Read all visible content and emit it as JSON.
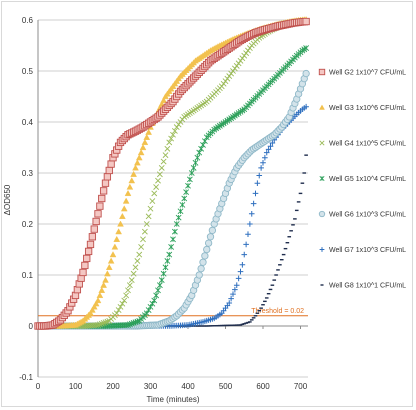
{
  "chart_data": {
    "type": "scatter",
    "title": "",
    "xlabel": "Time (minutes)",
    "ylabel": "ΔOD650",
    "xlim": [
      0,
      720
    ],
    "ylim": [
      -0.1,
      0.6
    ],
    "xticks": [
      0,
      100,
      200,
      300,
      400,
      500,
      600,
      700
    ],
    "yticks": [
      -0.1,
      0,
      0.1,
      0.2,
      0.3,
      0.4,
      0.5,
      0.6
    ],
    "ytick_labels": [
      "-0.1",
      "0",
      "0.1",
      "0.2",
      "0.3",
      "0.4",
      "0.5",
      "0.6"
    ],
    "grid": "horizontal",
    "legend_position": "right",
    "threshold": {
      "label": "Threshold = 0.02",
      "value": 0.02,
      "color": "#e07020"
    },
    "series": [
      {
        "name": "Well G2 1x10^7 CFU/mL",
        "color": "#c0504d",
        "marker": "square-open",
        "points": [
          [
            0,
            0
          ],
          [
            20,
            0
          ],
          [
            40,
            0.002
          ],
          [
            60,
            0.012
          ],
          [
            80,
            0.03
          ],
          [
            100,
            0.06
          ],
          [
            120,
            0.105
          ],
          [
            140,
            0.16
          ],
          [
            160,
            0.22
          ],
          [
            180,
            0.28
          ],
          [
            200,
            0.33
          ],
          [
            220,
            0.36
          ],
          [
            240,
            0.375
          ],
          [
            260,
            0.382
          ],
          [
            280,
            0.39
          ],
          [
            300,
            0.4
          ],
          [
            320,
            0.41
          ],
          [
            340,
            0.425
          ],
          [
            360,
            0.44
          ],
          [
            380,
            0.46
          ],
          [
            400,
            0.475
          ],
          [
            420,
            0.49
          ],
          [
            440,
            0.505
          ],
          [
            460,
            0.52
          ],
          [
            480,
            0.53
          ],
          [
            500,
            0.54
          ],
          [
            520,
            0.55
          ],
          [
            540,
            0.56
          ],
          [
            560,
            0.568
          ],
          [
            580,
            0.575
          ],
          [
            600,
            0.58
          ],
          [
            620,
            0.584
          ],
          [
            640,
            0.588
          ],
          [
            660,
            0.591
          ],
          [
            680,
            0.594
          ],
          [
            700,
            0.596
          ],
          [
            715,
            0.597
          ]
        ]
      },
      {
        "name": "Well G3 1x10^6 CFU/mL",
        "color": "#f2c14e",
        "marker": "triangle",
        "points": [
          [
            0,
            0
          ],
          [
            60,
            0
          ],
          [
            100,
            0.002
          ],
          [
            120,
            0.01
          ],
          [
            140,
            0.025
          ],
          [
            160,
            0.05
          ],
          [
            180,
            0.09
          ],
          [
            200,
            0.14
          ],
          [
            220,
            0.2
          ],
          [
            240,
            0.26
          ],
          [
            260,
            0.31
          ],
          [
            280,
            0.35
          ],
          [
            300,
            0.39
          ],
          [
            320,
            0.42
          ],
          [
            340,
            0.45
          ],
          [
            360,
            0.47
          ],
          [
            380,
            0.49
          ],
          [
            400,
            0.505
          ],
          [
            420,
            0.52
          ],
          [
            440,
            0.53
          ],
          [
            460,
            0.54
          ],
          [
            480,
            0.548
          ],
          [
            500,
            0.555
          ],
          [
            520,
            0.562
          ],
          [
            540,
            0.568
          ],
          [
            560,
            0.574
          ],
          [
            580,
            0.579
          ],
          [
            600,
            0.584
          ],
          [
            620,
            0.588
          ],
          [
            640,
            0.592
          ],
          [
            660,
            0.595
          ],
          [
            680,
            0.598
          ],
          [
            700,
            0.6
          ],
          [
            715,
            0.601
          ]
        ]
      },
      {
        "name": "Well G4 1x10^5 CFU/mL",
        "color": "#9bbb59",
        "marker": "x",
        "points": [
          [
            0,
            0
          ],
          [
            120,
            0
          ],
          [
            160,
            0.002
          ],
          [
            190,
            0.01
          ],
          [
            210,
            0.025
          ],
          [
            230,
            0.05
          ],
          [
            250,
            0.09
          ],
          [
            270,
            0.14
          ],
          [
            290,
            0.2
          ],
          [
            310,
            0.26
          ],
          [
            330,
            0.31
          ],
          [
            350,
            0.36
          ],
          [
            370,
            0.39
          ],
          [
            390,
            0.41
          ],
          [
            410,
            0.42
          ],
          [
            430,
            0.43
          ],
          [
            450,
            0.44
          ],
          [
            470,
            0.455
          ],
          [
            490,
            0.47
          ],
          [
            510,
            0.49
          ],
          [
            530,
            0.51
          ],
          [
            550,
            0.53
          ],
          [
            570,
            0.55
          ],
          [
            590,
            0.565
          ],
          [
            610,
            0.575
          ],
          [
            630,
            0.583
          ],
          [
            650,
            0.589
          ],
          [
            670,
            0.593
          ],
          [
            690,
            0.596
          ],
          [
            710,
            0.598
          ]
        ]
      },
      {
        "name": "Well G5 1x10^4 CFU/mL",
        "color": "#2ca05a",
        "marker": "star",
        "points": [
          [
            0,
            0
          ],
          [
            180,
            0
          ],
          [
            240,
            0.002
          ],
          [
            270,
            0.01
          ],
          [
            290,
            0.025
          ],
          [
            310,
            0.05
          ],
          [
            330,
            0.09
          ],
          [
            350,
            0.14
          ],
          [
            370,
            0.2
          ],
          [
            390,
            0.25
          ],
          [
            410,
            0.3
          ],
          [
            430,
            0.34
          ],
          [
            450,
            0.37
          ],
          [
            470,
            0.385
          ],
          [
            490,
            0.395
          ],
          [
            510,
            0.405
          ],
          [
            530,
            0.415
          ],
          [
            550,
            0.425
          ],
          [
            570,
            0.44
          ],
          [
            590,
            0.455
          ],
          [
            610,
            0.47
          ],
          [
            630,
            0.485
          ],
          [
            650,
            0.5
          ],
          [
            670,
            0.515
          ],
          [
            690,
            0.53
          ],
          [
            705,
            0.54
          ],
          [
            715,
            0.545
          ]
        ]
      },
      {
        "name": "Well G6 1x10^3 CFU/mL",
        "color": "#8fb8c8",
        "marker": "circle",
        "points": [
          [
            0,
            0
          ],
          [
            260,
            0
          ],
          [
            320,
            0.002
          ],
          [
            350,
            0.01
          ],
          [
            370,
            0.02
          ],
          [
            390,
            0.035
          ],
          [
            410,
            0.06
          ],
          [
            430,
            0.1
          ],
          [
            450,
            0.15
          ],
          [
            470,
            0.2
          ],
          [
            490,
            0.24
          ],
          [
            510,
            0.28
          ],
          [
            530,
            0.31
          ],
          [
            550,
            0.33
          ],
          [
            570,
            0.345
          ],
          [
            590,
            0.355
          ],
          [
            610,
            0.365
          ],
          [
            630,
            0.375
          ],
          [
            650,
            0.39
          ],
          [
            670,
            0.41
          ],
          [
            690,
            0.445
          ],
          [
            705,
            0.475
          ],
          [
            715,
            0.495
          ]
        ]
      },
      {
        "name": "Well G7 1x10^3 CFU/mL",
        "color": "#2e6fbf",
        "marker": "plus",
        "points": [
          [
            0,
            0
          ],
          [
            350,
            0
          ],
          [
            400,
            0.002
          ],
          [
            440,
            0.008
          ],
          [
            470,
            0.015
          ],
          [
            490,
            0.025
          ],
          [
            510,
            0.045
          ],
          [
            530,
            0.08
          ],
          [
            545,
            0.12
          ],
          [
            555,
            0.16
          ],
          [
            565,
            0.2
          ],
          [
            575,
            0.24
          ],
          [
            585,
            0.28
          ],
          [
            595,
            0.31
          ],
          [
            610,
            0.34
          ],
          [
            630,
            0.365
          ],
          [
            650,
            0.385
          ],
          [
            670,
            0.4
          ],
          [
            690,
            0.415
          ],
          [
            705,
            0.425
          ],
          [
            715,
            0.43
          ]
        ]
      },
      {
        "name": "Well G8 1x10^1 CFU/mL",
        "color": "#1f2d4d",
        "marker": "dash",
        "points": [
          [
            0,
            0
          ],
          [
            450,
            0
          ],
          [
            540,
            0.002
          ],
          [
            565,
            0.008
          ],
          [
            580,
            0.02
          ],
          [
            595,
            0.035
          ],
          [
            610,
            0.055
          ],
          [
            625,
            0.08
          ],
          [
            640,
            0.11
          ],
          [
            655,
            0.14
          ],
          [
            670,
            0.175
          ],
          [
            685,
            0.21
          ],
          [
            700,
            0.26
          ],
          [
            710,
            0.3
          ],
          [
            715,
            0.335
          ]
        ]
      }
    ]
  }
}
